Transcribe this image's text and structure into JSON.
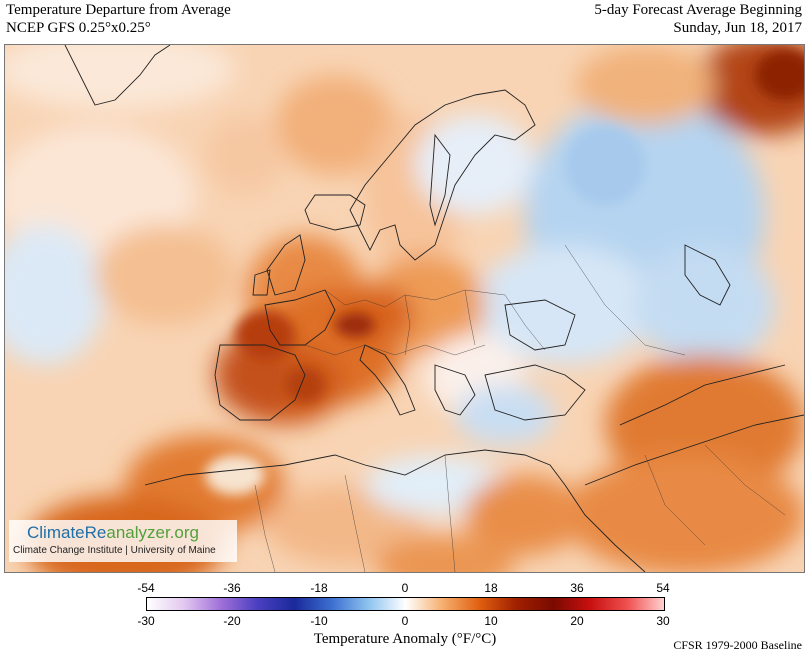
{
  "header": {
    "title": "Temperature Departure from Average",
    "model": "NCEP GFS 0.25°x0.25°",
    "forecast_label": "5-day Forecast Average Beginning",
    "date": "Sunday, Jun 18, 2017"
  },
  "logo": {
    "name_part1": "ClimateRe",
    "name_part2": "analyzer.org",
    "subtitle": "Climate Change Institute | University of Maine"
  },
  "legend": {
    "title": "Temperature Anomaly (°F/°C)",
    "fahrenheit_ticks": [
      "-54",
      "-36",
      "-18",
      "0",
      "18",
      "36",
      "54"
    ],
    "celsius_ticks": [
      "-30",
      "-20",
      "-10",
      "0",
      "10",
      "20",
      "30"
    ],
    "baseline": "CFSR 1979-2000 Baseline",
    "colors": [
      "#ffffff",
      "#e3c8f0",
      "#a070d8",
      "#4a3fc0",
      "#1a2a9a",
      "#3c6fd0",
      "#8fc4ee",
      "#ffffff",
      "#f6b070",
      "#e06010",
      "#a02000",
      "#7a0a00",
      "#c81010",
      "#f05050",
      "#ffd0d0"
    ]
  },
  "map": {
    "region": "Europe, North Africa and Middle East",
    "colors": {
      "warm_light": "#f7c9a1",
      "warm": "#ee9a55",
      "warm_strong": "#d8651e",
      "hot": "#a8320a",
      "cool_light": "#d5e8f8",
      "cool": "#a9cdee"
    }
  }
}
